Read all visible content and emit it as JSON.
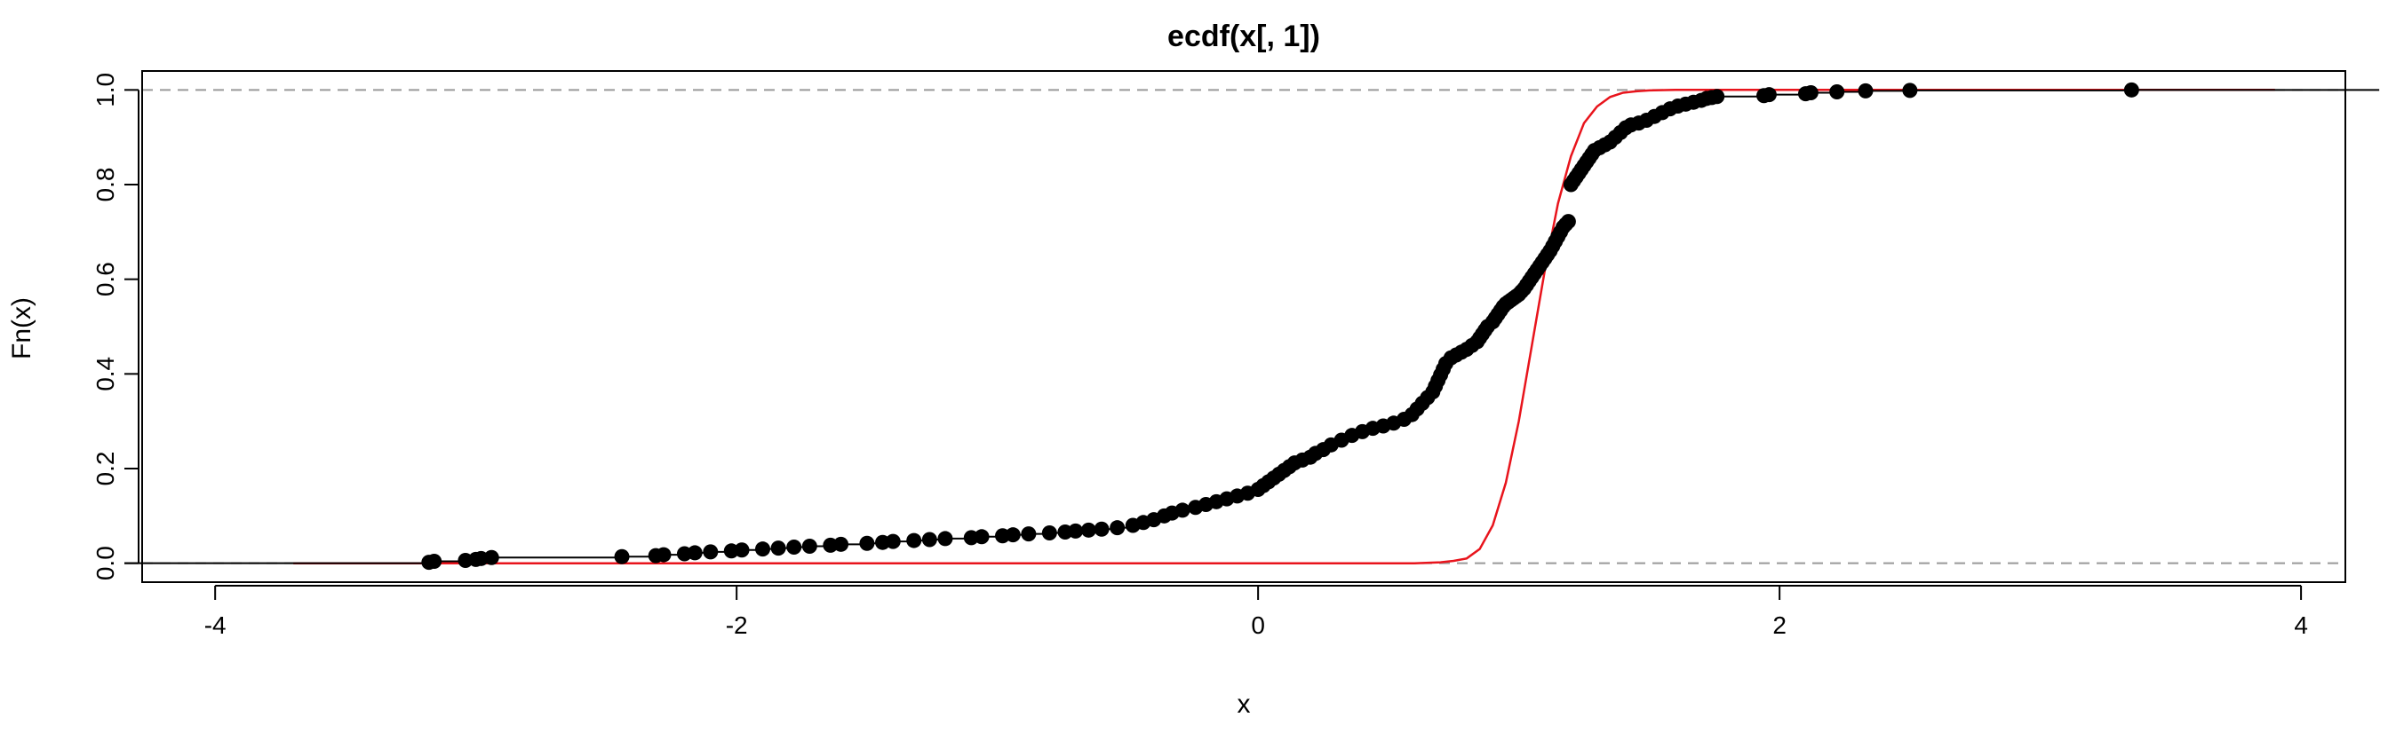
{
  "chart_data": {
    "type": "line",
    "title": "ecdf(x[, 1])",
    "xlabel": "x",
    "ylabel": "Fn(x)",
    "xlim": [
      -4,
      4
    ],
    "ylim": [
      0,
      1
    ],
    "x_ticks": [
      -4,
      -2,
      0,
      2,
      4
    ],
    "x_tick_labels": [
      "-4",
      "-2",
      "0",
      "2",
      "4"
    ],
    "y_ticks": [
      0,
      0.2,
      0.4,
      0.6,
      0.8,
      1.0
    ],
    "y_tick_labels": [
      "0.0",
      "0.2",
      "0.4",
      "0.6",
      "0.8",
      "1.0"
    ],
    "grid": false,
    "reference_lines": [
      0,
      1
    ],
    "colors": {
      "ecdf": "#000000",
      "reference_cdf": "#e8141c",
      "reference_lines": "#999999"
    },
    "series": [
      {
        "style": "ecdf-steps-with-points",
        "points": [
          [
            -3.18,
            0.002
          ],
          [
            -3.16,
            0.004
          ],
          [
            -3.04,
            0.006
          ],
          [
            -3.0,
            0.008
          ],
          [
            -2.98,
            0.01
          ],
          [
            -2.94,
            0.012
          ],
          [
            -2.44,
            0.014
          ],
          [
            -2.31,
            0.016
          ],
          [
            -2.28,
            0.018
          ],
          [
            -2.2,
            0.02
          ],
          [
            -2.16,
            0.022
          ],
          [
            -2.1,
            0.024
          ],
          [
            -2.02,
            0.026
          ],
          [
            -1.98,
            0.028
          ],
          [
            -1.9,
            0.03
          ],
          [
            -1.84,
            0.032
          ],
          [
            -1.78,
            0.034
          ],
          [
            -1.72,
            0.036
          ],
          [
            -1.64,
            0.038
          ],
          [
            -1.6,
            0.04
          ],
          [
            -1.5,
            0.042
          ],
          [
            -1.44,
            0.044
          ],
          [
            -1.4,
            0.046
          ],
          [
            -1.32,
            0.048
          ],
          [
            -1.26,
            0.05
          ],
          [
            -1.2,
            0.052
          ],
          [
            -1.1,
            0.054
          ],
          [
            -1.06,
            0.056
          ],
          [
            -0.98,
            0.058
          ],
          [
            -0.94,
            0.06
          ],
          [
            -0.88,
            0.062
          ],
          [
            -0.8,
            0.064
          ],
          [
            -0.74,
            0.066
          ],
          [
            -0.7,
            0.068
          ],
          [
            -0.65,
            0.07
          ],
          [
            -0.6,
            0.072
          ],
          [
            -0.54,
            0.075
          ],
          [
            -0.48,
            0.08
          ],
          [
            -0.44,
            0.086
          ],
          [
            -0.4,
            0.092
          ],
          [
            -0.36,
            0.1
          ],
          [
            -0.33,
            0.106
          ],
          [
            -0.29,
            0.112
          ],
          [
            -0.24,
            0.118
          ],
          [
            -0.2,
            0.124
          ],
          [
            -0.16,
            0.13
          ],
          [
            -0.12,
            0.136
          ],
          [
            -0.08,
            0.142
          ],
          [
            -0.04,
            0.148
          ],
          [
            0.0,
            0.156
          ],
          [
            0.02,
            0.164
          ],
          [
            0.04,
            0.172
          ],
          [
            0.06,
            0.18
          ],
          [
            0.08,
            0.188
          ],
          [
            0.1,
            0.196
          ],
          [
            0.12,
            0.204
          ],
          [
            0.14,
            0.212
          ],
          [
            0.17,
            0.218
          ],
          [
            0.2,
            0.224
          ],
          [
            0.22,
            0.232
          ],
          [
            0.25,
            0.24
          ],
          [
            0.28,
            0.25
          ],
          [
            0.32,
            0.26
          ],
          [
            0.36,
            0.27
          ],
          [
            0.4,
            0.278
          ],
          [
            0.44,
            0.285
          ],
          [
            0.48,
            0.29
          ],
          [
            0.52,
            0.296
          ],
          [
            0.56,
            0.304
          ],
          [
            0.59,
            0.314
          ],
          [
            0.61,
            0.326
          ],
          [
            0.63,
            0.338
          ],
          [
            0.65,
            0.35
          ],
          [
            0.67,
            0.362
          ],
          [
            0.68,
            0.374
          ],
          [
            0.69,
            0.386
          ],
          [
            0.7,
            0.398
          ],
          [
            0.71,
            0.41
          ],
          [
            0.72,
            0.422
          ],
          [
            0.74,
            0.434
          ],
          [
            0.76,
            0.44
          ],
          [
            0.78,
            0.446
          ],
          [
            0.8,
            0.452
          ],
          [
            0.82,
            0.46
          ],
          [
            0.84,
            0.468
          ],
          [
            0.85,
            0.476
          ],
          [
            0.86,
            0.484
          ],
          [
            0.87,
            0.492
          ],
          [
            0.88,
            0.5
          ],
          [
            0.9,
            0.51
          ],
          [
            0.91,
            0.518
          ],
          [
            0.92,
            0.526
          ],
          [
            0.93,
            0.534
          ],
          [
            0.94,
            0.542
          ],
          [
            0.95,
            0.548
          ],
          [
            0.96,
            0.552
          ],
          [
            0.97,
            0.556
          ],
          [
            0.98,
            0.56
          ],
          [
            0.99,
            0.564
          ],
          [
            1.0,
            0.568
          ],
          [
            1.01,
            0.574
          ],
          [
            1.02,
            0.58
          ],
          [
            1.03,
            0.588
          ],
          [
            1.04,
            0.596
          ],
          [
            1.05,
            0.604
          ],
          [
            1.06,
            0.612
          ],
          [
            1.07,
            0.62
          ],
          [
            1.08,
            0.628
          ],
          [
            1.09,
            0.636
          ],
          [
            1.1,
            0.644
          ],
          [
            1.11,
            0.652
          ],
          [
            1.12,
            0.66
          ],
          [
            1.13,
            0.67
          ],
          [
            1.14,
            0.68
          ],
          [
            1.15,
            0.69
          ],
          [
            1.16,
            0.7
          ],
          [
            1.17,
            0.71
          ],
          [
            1.18,
            0.716
          ],
          [
            1.19,
            0.722
          ],
          [
            1.2,
            0.8
          ],
          [
            1.21,
            0.808
          ],
          [
            1.22,
            0.816
          ],
          [
            1.23,
            0.824
          ],
          [
            1.24,
            0.832
          ],
          [
            1.25,
            0.84
          ],
          [
            1.26,
            0.848
          ],
          [
            1.27,
            0.856
          ],
          [
            1.28,
            0.864
          ],
          [
            1.29,
            0.872
          ],
          [
            1.31,
            0.878
          ],
          [
            1.33,
            0.884
          ],
          [
            1.35,
            0.89
          ],
          [
            1.37,
            0.9
          ],
          [
            1.39,
            0.91
          ],
          [
            1.41,
            0.92
          ],
          [
            1.43,
            0.926
          ],
          [
            1.46,
            0.93
          ],
          [
            1.49,
            0.936
          ],
          [
            1.52,
            0.944
          ],
          [
            1.55,
            0.952
          ],
          [
            1.58,
            0.96
          ],
          [
            1.61,
            0.966
          ],
          [
            1.64,
            0.97
          ],
          [
            1.67,
            0.974
          ],
          [
            1.7,
            0.978
          ],
          [
            1.72,
            0.982
          ],
          [
            1.74,
            0.984
          ],
          [
            1.76,
            0.986
          ],
          [
            1.94,
            0.988
          ],
          [
            1.96,
            0.99
          ],
          [
            2.1,
            0.992
          ],
          [
            2.12,
            0.994
          ],
          [
            2.22,
            0.996
          ],
          [
            2.33,
            0.998
          ],
          [
            2.5,
            0.999
          ],
          [
            3.35,
            1.0
          ]
        ]
      },
      {
        "style": "reference-cdf",
        "x": [
          -3.7,
          -2.0,
          0.0,
          0.6,
          0.7,
          0.75,
          0.8,
          0.85,
          0.9,
          0.95,
          1.0,
          1.05,
          1.1,
          1.15,
          1.2,
          1.25,
          1.3,
          1.35,
          1.4,
          1.45,
          1.5,
          1.6,
          1.8,
          2.0,
          3.0,
          3.9
        ],
        "y": [
          0.0,
          0.0,
          0.0,
          0.0,
          0.002,
          0.005,
          0.01,
          0.03,
          0.08,
          0.17,
          0.3,
          0.46,
          0.62,
          0.76,
          0.86,
          0.93,
          0.965,
          0.985,
          0.994,
          0.997,
          0.999,
          1.0,
          1.0,
          1.0,
          1.0,
          1.0
        ]
      }
    ]
  }
}
